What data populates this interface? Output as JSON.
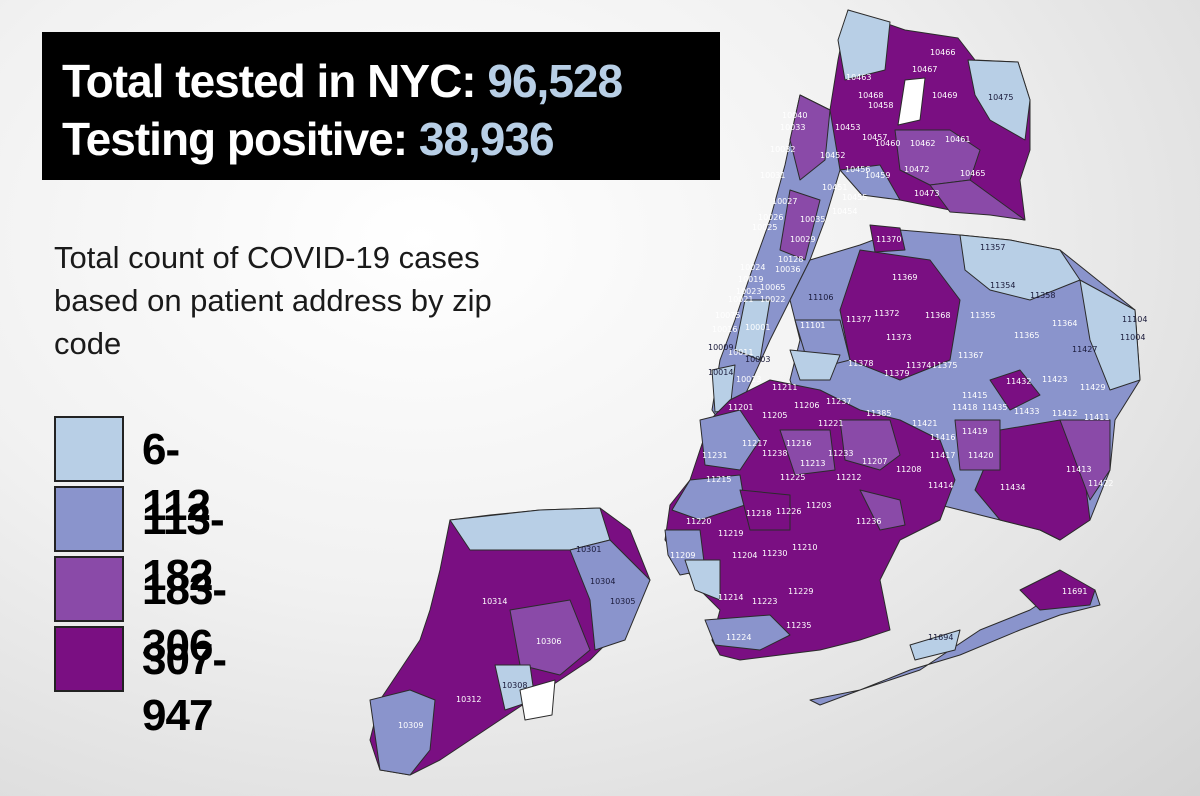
{
  "header": {
    "tested_label": "Total tested in NYC:",
    "tested_value": "96,528",
    "positive_label": "Testing positive:",
    "positive_value": "38,936"
  },
  "description": "Total count of COVID-19 cases based on patient address by zip code",
  "legend": [
    {
      "range": "6-112",
      "color": "#b8cfe6"
    },
    {
      "range": "113-182",
      "color": "#8a94cc"
    },
    {
      "range": "183-306",
      "color": "#8a4aa8"
    },
    {
      "range": "307-947",
      "color": "#7a0f82"
    }
  ],
  "colors": {
    "header_bg": "#000000",
    "header_text": "#ffffff",
    "header_value": "#b8cfe6",
    "region_border": "#2b2b2b"
  },
  "map_labels": {
    "bronx": [
      "10466",
      "10463",
      "10467",
      "10468",
      "10458",
      "10469",
      "10475",
      "10040",
      "10033",
      "10453",
      "10457",
      "10460",
      "10462",
      "10461",
      "10032",
      "10452",
      "10456",
      "10459",
      "10472",
      "10465",
      "10031",
      "10451",
      "10455",
      "10473",
      "10027",
      "10454",
      "10026",
      "10035",
      "10025",
      "10029",
      "10128",
      "10024",
      "10023",
      "10019",
      "10065",
      "10022",
      "10021",
      "10036",
      "10075",
      "10001",
      "10016",
      "10011",
      "10003",
      "10009",
      "10014",
      "10013",
      "10002"
    ],
    "queens": [
      "11370",
      "11357",
      "11369",
      "11354",
      "11358",
      "11106",
      "11104",
      "11377",
      "11372",
      "11368",
      "11355",
      "11364",
      "11004",
      "11101",
      "11373",
      "11365",
      "11367",
      "11427",
      "11378",
      "11379",
      "11374",
      "11375",
      "11432",
      "11423",
      "11429",
      "11211",
      "11206",
      "11237",
      "11415",
      "11418",
      "11435",
      "11433",
      "11412",
      "11411",
      "11385",
      "11421",
      "11416",
      "11419"
    ],
    "brooklyn": [
      "11201",
      "11205",
      "11221",
      "11217",
      "11216",
      "11238",
      "11231",
      "11233",
      "11213",
      "11207",
      "11208",
      "11417",
      "11420",
      "11413",
      "11225",
      "11212",
      "11414",
      "11422",
      "11215",
      "11434",
      "11218",
      "11226",
      "11203",
      "11236",
      "11220",
      "11219",
      "11204",
      "11230",
      "11210",
      "11209",
      "11214",
      "11223",
      "11229",
      "11235",
      "11224",
      "11691",
      "11694"
    ],
    "staten_island": [
      "10301",
      "10304",
      "10305",
      "10314",
      "10306",
      "10308",
      "10312",
      "10309"
    ]
  }
}
